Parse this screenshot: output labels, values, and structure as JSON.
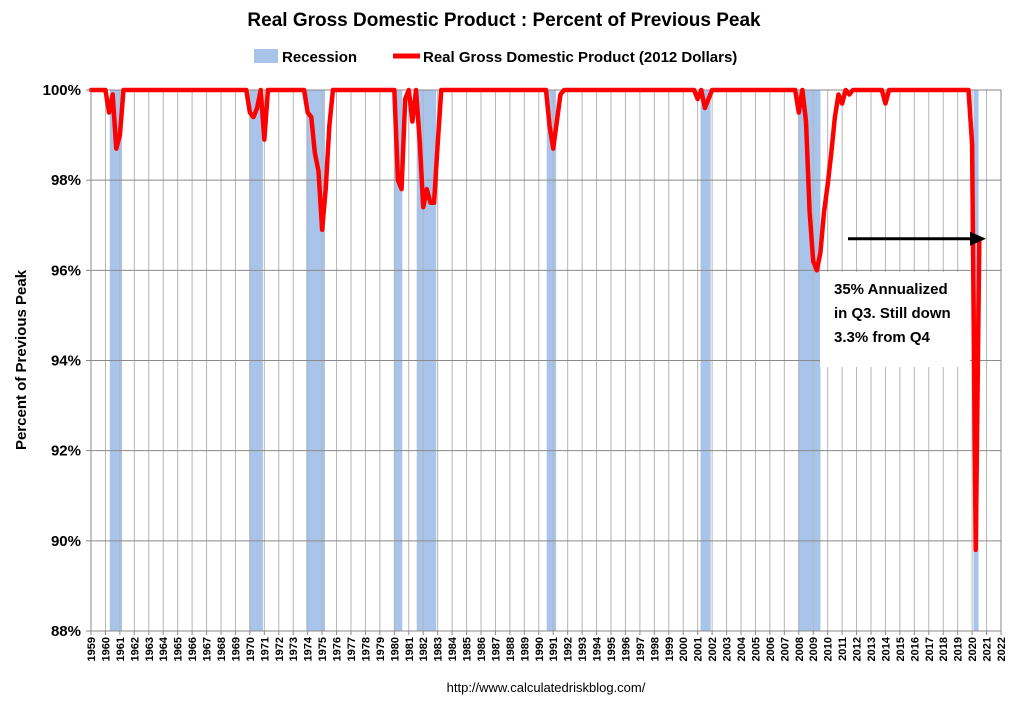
{
  "chart_data": {
    "type": "line",
    "title": "Real Gross Domestic Product : Percent of Previous Peak",
    "ylabel": "Percent of Previous Peak",
    "source": "http://www.calculatedriskblog.com/",
    "xlim": [
      1959,
      2022
    ],
    "ylim": [
      88,
      100
    ],
    "y_ticks": [
      "100%",
      "98%",
      "96%",
      "94%",
      "92%",
      "90%",
      "88%"
    ],
    "x_ticks": [
      "1959",
      "1960",
      "1961",
      "1962",
      "1963",
      "1964",
      "1965",
      "1966",
      "1967",
      "1968",
      "1969",
      "1970",
      "1971",
      "1972",
      "1973",
      "1974",
      "1975",
      "1976",
      "1977",
      "1978",
      "1979",
      "1980",
      "1981",
      "1982",
      "1983",
      "1984",
      "1985",
      "1986",
      "1987",
      "1988",
      "1989",
      "1990",
      "1991",
      "1992",
      "1993",
      "1994",
      "1995",
      "1996",
      "1997",
      "1998",
      "1999",
      "2000",
      "2001",
      "2002",
      "2003",
      "2004",
      "2005",
      "2006",
      "2007",
      "2008",
      "2009",
      "2010",
      "2011",
      "2012",
      "2013",
      "2014",
      "2015",
      "2016",
      "2017",
      "2018",
      "2019",
      "2020",
      "2021",
      "2022"
    ],
    "grid": true,
    "legend_position": "top",
    "annotation": {
      "lines": [
        "35% Annualized",
        "in Q3.  Still down",
        "3.3% from Q4"
      ],
      "arrow_y": 96.7
    },
    "recessions": {
      "name": "Recession",
      "color": "#a9c4eb",
      "periods": [
        [
          1960.3,
          1961.15
        ],
        [
          1969.95,
          1970.9
        ],
        [
          1973.9,
          1975.2
        ],
        [
          1980.0,
          1980.55
        ],
        [
          1981.55,
          1982.9
        ],
        [
          1990.55,
          1991.2
        ],
        [
          2001.2,
          2001.9
        ],
        [
          2007.95,
          2009.5
        ],
        [
          2020.1,
          2020.45
        ]
      ]
    },
    "series": [
      {
        "name": "Real Gross Domestic Product (2012 Dollars)",
        "color": "#ff0000",
        "points": [
          [
            1959.0,
            100
          ],
          [
            1960.0,
            100
          ],
          [
            1960.25,
            99.5
          ],
          [
            1960.5,
            99.9
          ],
          [
            1960.75,
            98.7
          ],
          [
            1961.0,
            99.0
          ],
          [
            1961.25,
            100
          ],
          [
            1969.75,
            100
          ],
          [
            1970.0,
            99.5
          ],
          [
            1970.25,
            99.4
          ],
          [
            1970.5,
            99.6
          ],
          [
            1970.75,
            100
          ],
          [
            1971.0,
            98.9
          ],
          [
            1971.25,
            100
          ],
          [
            1973.75,
            100
          ],
          [
            1974.0,
            99.5
          ],
          [
            1974.25,
            99.4
          ],
          [
            1974.5,
            98.6
          ],
          [
            1974.75,
            98.2
          ],
          [
            1975.0,
            96.9
          ],
          [
            1975.25,
            97.8
          ],
          [
            1975.5,
            99.2
          ],
          [
            1975.75,
            100
          ],
          [
            1980.0,
            100
          ],
          [
            1980.25,
            98.0
          ],
          [
            1980.5,
            97.8
          ],
          [
            1980.75,
            99.8
          ],
          [
            1981.0,
            100
          ],
          [
            1981.25,
            99.3
          ],
          [
            1981.5,
            100
          ],
          [
            1981.75,
            98.9
          ],
          [
            1982.0,
            97.4
          ],
          [
            1982.25,
            97.8
          ],
          [
            1982.5,
            97.5
          ],
          [
            1982.75,
            97.5
          ],
          [
            1983.0,
            98.8
          ],
          [
            1983.25,
            100
          ],
          [
            1990.5,
            100
          ],
          [
            1990.75,
            99.2
          ],
          [
            1991.0,
            98.7
          ],
          [
            1991.25,
            99.3
          ],
          [
            1991.5,
            99.9
          ],
          [
            1991.75,
            100
          ],
          [
            2000.75,
            100
          ],
          [
            2001.0,
            99.8
          ],
          [
            2001.25,
            100
          ],
          [
            2001.5,
            99.6
          ],
          [
            2001.75,
            99.8
          ],
          [
            2002.0,
            100
          ],
          [
            2007.75,
            100
          ],
          [
            2008.0,
            99.5
          ],
          [
            2008.25,
            100
          ],
          [
            2008.5,
            99.3
          ],
          [
            2008.75,
            97.3
          ],
          [
            2009.0,
            96.2
          ],
          [
            2009.25,
            96.0
          ],
          [
            2009.5,
            96.4
          ],
          [
            2009.75,
            97.3
          ],
          [
            2010.0,
            97.9
          ],
          [
            2010.25,
            98.6
          ],
          [
            2010.5,
            99.4
          ],
          [
            2010.75,
            99.9
          ],
          [
            2011.0,
            99.7
          ],
          [
            2011.25,
            100
          ],
          [
            2011.5,
            99.9
          ],
          [
            2011.75,
            100
          ],
          [
            2013.75,
            100
          ],
          [
            2014.0,
            99.7
          ],
          [
            2014.25,
            100
          ],
          [
            2019.75,
            100
          ],
          [
            2020.0,
            98.8
          ],
          [
            2020.25,
            89.8
          ],
          [
            2020.5,
            96.7
          ]
        ]
      }
    ]
  }
}
